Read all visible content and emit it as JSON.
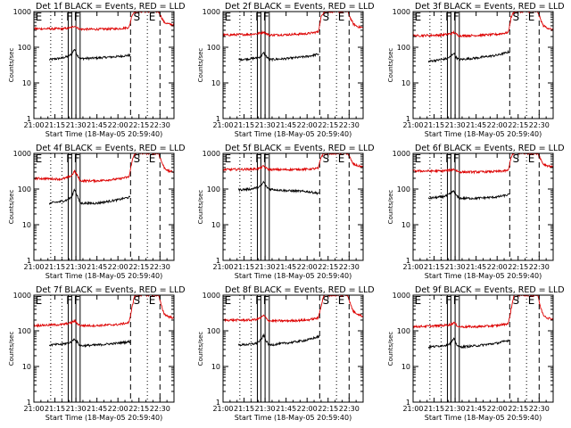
{
  "figure": {
    "background": "#ffffff",
    "axis_color": "#000000",
    "series_colors": {
      "events": "#000000",
      "lld": "#dd0000"
    }
  },
  "shared": {
    "xlabel": "Start Time (18-May-05 20:59:40)",
    "ylabel": "Counts/sec",
    "xticks": [
      "21:00",
      "21:15",
      "21:30",
      "21:45",
      "22:00",
      "22:15",
      "22:30"
    ],
    "xtick_minutes": [
      0,
      15,
      30,
      45,
      60,
      75,
      90
    ],
    "yticks": [
      "1",
      "10",
      "100",
      "1000"
    ],
    "ytick_values": [
      1,
      10,
      100,
      1000
    ],
    "xlim_minutes": [
      0,
      100
    ],
    "ylim": [
      1,
      1000
    ],
    "yscale": "log",
    "vlines": [
      {
        "t": 12,
        "style": "dotted"
      },
      {
        "t": 20,
        "style": "dotted"
      },
      {
        "t": 24.5,
        "style": "solid"
      },
      {
        "t": 27,
        "style": "solid"
      },
      {
        "t": 30,
        "style": "solid"
      },
      {
        "t": 33,
        "style": "solid"
      },
      {
        "t": 69,
        "style": "dashed"
      },
      {
        "t": 81,
        "style": "dotted"
      },
      {
        "t": 90,
        "style": "dashed"
      }
    ],
    "markers": [
      {
        "t": 1,
        "label": "E"
      },
      {
        "t": 23,
        "label": "F"
      },
      {
        "t": 28.5,
        "label": "F"
      },
      {
        "t": 71,
        "label": "S"
      },
      {
        "t": 82,
        "label": "E"
      }
    ]
  },
  "chart_data": [
    {
      "type": "line",
      "title": "Det 1f BLACK = Events, RED = LLD",
      "xlabel": "Start Time (18-May-05 20:59:40)",
      "ylabel": "Counts/sec",
      "yscale": "log",
      "xlim": [
        "21:00",
        "22:40"
      ],
      "ylim": [
        1,
        1000
      ],
      "series": [
        {
          "name": "Events",
          "color": "#000000",
          "t_start": 11,
          "t_end": 69,
          "x_minutes": [
            11,
            20,
            24,
            27,
            29,
            31,
            33,
            45,
            60,
            69
          ],
          "values": [
            45,
            50,
            55,
            65,
            90,
            60,
            48,
            50,
            55,
            60
          ]
        },
        {
          "name": "LLD",
          "color": "#dd0000",
          "t_start": 0,
          "t_end": 100,
          "x_minutes": [
            0,
            20,
            24,
            27,
            29,
            31,
            33,
            45,
            60,
            68,
            70,
            72,
            76,
            81,
            89,
            91,
            93,
            96,
            100
          ],
          "values": [
            330,
            330,
            340,
            360,
            400,
            350,
            320,
            320,
            330,
            360,
            800,
            1000,
            1000,
            1000,
            1000,
            700,
            500,
            450,
            420
          ]
        }
      ]
    },
    {
      "type": "line",
      "title": "Det 2f BLACK = Events, RED = LLD",
      "xlabel": "Start Time (18-May-05 20:59:40)",
      "ylabel": "Counts/sec",
      "yscale": "log",
      "xlim": [
        "21:00",
        "22:40"
      ],
      "ylim": [
        1,
        1000
      ],
      "series": [
        {
          "name": "Events",
          "color": "#000000",
          "t_start": 11,
          "t_end": 69,
          "x_minutes": [
            11,
            20,
            24,
            27,
            29,
            31,
            33,
            45,
            60,
            69
          ],
          "values": [
            45,
            48,
            50,
            55,
            70,
            55,
            45,
            48,
            55,
            65
          ]
        },
        {
          "name": "LLD",
          "color": "#dd0000",
          "t_start": 0,
          "t_end": 100,
          "x_minutes": [
            0,
            20,
            24,
            27,
            29,
            31,
            33,
            45,
            60,
            68,
            70,
            72,
            76,
            81,
            89,
            91,
            93,
            96,
            100
          ],
          "values": [
            220,
            230,
            240,
            250,
            270,
            240,
            220,
            225,
            240,
            270,
            700,
            1000,
            1000,
            1000,
            1000,
            650,
            450,
            380,
            350
          ]
        }
      ]
    },
    {
      "type": "line",
      "title": "Det 3f BLACK = Events, RED = LLD",
      "xlabel": "Start Time (18-May-05 20:59:40)",
      "ylabel": "Counts/sec",
      "yscale": "log",
      "xlim": [
        "21:00",
        "22:40"
      ],
      "ylim": [
        1,
        1000
      ],
      "series": [
        {
          "name": "Events",
          "color": "#000000",
          "t_start": 11,
          "t_end": 69,
          "x_minutes": [
            11,
            20,
            24,
            27,
            29,
            31,
            33,
            45,
            60,
            69
          ],
          "values": [
            40,
            45,
            48,
            55,
            70,
            50,
            45,
            50,
            60,
            75
          ]
        },
        {
          "name": "LLD",
          "color": "#dd0000",
          "t_start": 0,
          "t_end": 100,
          "x_minutes": [
            0,
            20,
            24,
            27,
            29,
            31,
            33,
            45,
            60,
            68,
            70,
            72,
            76,
            81,
            89,
            91,
            93,
            96,
            100
          ],
          "values": [
            210,
            220,
            230,
            240,
            260,
            230,
            210,
            215,
            230,
            260,
            700,
            1000,
            1000,
            1000,
            1000,
            600,
            400,
            350,
            300
          ]
        }
      ]
    },
    {
      "type": "line",
      "title": "Det 4f BLACK = Events, RED = LLD",
      "xlabel": "Start Time (18-May-05 20:59:40)",
      "ylabel": "Counts/sec",
      "yscale": "log",
      "xlim": [
        "21:00",
        "22:40"
      ],
      "ylim": [
        1,
        1000
      ],
      "series": [
        {
          "name": "Events",
          "color": "#000000",
          "t_start": 11,
          "t_end": 69,
          "x_minutes": [
            11,
            20,
            24,
            27,
            29,
            31,
            33,
            45,
            60,
            69
          ],
          "values": [
            40,
            45,
            50,
            60,
            100,
            65,
            40,
            40,
            50,
            60
          ]
        },
        {
          "name": "LLD",
          "color": "#dd0000",
          "t_start": 0,
          "t_end": 100,
          "x_minutes": [
            0,
            20,
            24,
            27,
            29,
            31,
            33,
            45,
            60,
            68,
            70,
            72,
            76,
            81,
            89,
            91,
            93,
            96,
            100
          ],
          "values": [
            200,
            190,
            210,
            240,
            320,
            240,
            170,
            170,
            190,
            220,
            600,
            1000,
            1000,
            1000,
            1000,
            600,
            400,
            320,
            300
          ]
        }
      ]
    },
    {
      "type": "line",
      "title": "Det 5f BLACK = Events, RED = LLD",
      "xlabel": "Start Time (18-May-05 20:59:40)",
      "ylabel": "Counts/sec",
      "yscale": "log",
      "xlim": [
        "21:00",
        "22:40"
      ],
      "ylim": [
        1,
        1000
      ],
      "series": [
        {
          "name": "Events",
          "color": "#000000",
          "t_start": 11,
          "t_end": 69,
          "x_minutes": [
            11,
            20,
            24,
            27,
            29,
            31,
            33,
            45,
            60,
            69
          ],
          "values": [
            95,
            100,
            110,
            120,
            160,
            115,
            100,
            90,
            85,
            75
          ]
        },
        {
          "name": "LLD",
          "color": "#dd0000",
          "t_start": 0,
          "t_end": 100,
          "x_minutes": [
            0,
            20,
            24,
            27,
            29,
            31,
            33,
            45,
            60,
            68,
            70,
            72,
            76,
            81,
            89,
            91,
            93,
            96,
            100
          ],
          "values": [
            350,
            360,
            370,
            390,
            440,
            380,
            350,
            350,
            360,
            380,
            800,
            1000,
            1000,
            1000,
            1000,
            700,
            500,
            450,
            420
          ]
        }
      ]
    },
    {
      "type": "line",
      "title": "Det 6f BLACK = Events, RED = LLD",
      "xlabel": "Start Time (18-May-05 20:59:40)",
      "ylabel": "Counts/sec",
      "yscale": "log",
      "xlim": [
        "21:00",
        "22:40"
      ],
      "ylim": [
        1,
        1000
      ],
      "series": [
        {
          "name": "Events",
          "color": "#000000",
          "t_start": 11,
          "t_end": 69,
          "x_minutes": [
            11,
            20,
            24,
            27,
            29,
            31,
            33,
            45,
            60,
            69
          ],
          "values": [
            55,
            60,
            65,
            75,
            90,
            65,
            55,
            55,
            60,
            70
          ]
        },
        {
          "name": "LLD",
          "color": "#dd0000",
          "t_start": 0,
          "t_end": 100,
          "x_minutes": [
            0,
            20,
            24,
            27,
            29,
            31,
            33,
            45,
            60,
            68,
            70,
            72,
            76,
            81,
            89,
            91,
            93,
            96,
            100
          ],
          "values": [
            320,
            320,
            330,
            340,
            360,
            330,
            300,
            300,
            310,
            330,
            800,
            1000,
            1000,
            1000,
            1000,
            700,
            500,
            450,
            420
          ]
        }
      ]
    },
    {
      "type": "line",
      "title": "Det 7f BLACK = Events, RED = LLD",
      "xlabel": "Start Time (18-May-05 20:59:40)",
      "ylabel": "Counts/sec",
      "yscale": "log",
      "xlim": [
        "21:00",
        "22:40"
      ],
      "ylim": [
        1,
        1000
      ],
      "series": [
        {
          "name": "Events",
          "color": "#000000",
          "t_start": 11,
          "t_end": 69,
          "x_minutes": [
            11,
            20,
            24,
            27,
            29,
            31,
            33,
            45,
            60,
            69
          ],
          "values": [
            40,
            42,
            45,
            50,
            60,
            48,
            38,
            40,
            45,
            50
          ]
        },
        {
          "name": "LLD",
          "color": "#dd0000",
          "t_start": 0,
          "t_end": 100,
          "x_minutes": [
            0,
            20,
            24,
            27,
            29,
            31,
            33,
            45,
            60,
            68,
            70,
            72,
            76,
            81,
            89,
            91,
            93,
            96,
            100
          ],
          "values": [
            140,
            150,
            160,
            170,
            190,
            160,
            140,
            140,
            150,
            170,
            450,
            1000,
            1000,
            1000,
            1000,
            500,
            300,
            250,
            230
          ]
        }
      ]
    },
    {
      "type": "line",
      "title": "Det 8f BLACK = Events, RED = LLD",
      "xlabel": "Start Time (18-May-05 20:59:40)",
      "ylabel": "Counts/sec",
      "yscale": "log",
      "xlim": [
        "21:00",
        "22:40"
      ],
      "ylim": [
        1,
        1000
      ],
      "series": [
        {
          "name": "Events",
          "color": "#000000",
          "t_start": 11,
          "t_end": 69,
          "x_minutes": [
            11,
            20,
            24,
            27,
            29,
            31,
            33,
            45,
            60,
            69
          ],
          "values": [
            40,
            42,
            45,
            55,
            75,
            50,
            40,
            45,
            55,
            70
          ]
        },
        {
          "name": "LLD",
          "color": "#dd0000",
          "t_start": 0,
          "t_end": 100,
          "x_minutes": [
            0,
            20,
            24,
            27,
            29,
            31,
            33,
            45,
            60,
            68,
            70,
            72,
            76,
            81,
            89,
            91,
            93,
            96,
            100
          ],
          "values": [
            200,
            200,
            210,
            230,
            270,
            220,
            190,
            190,
            200,
            230,
            500,
            1000,
            1000,
            1000,
            1000,
            550,
            350,
            300,
            250
          ]
        }
      ]
    },
    {
      "type": "line",
      "title": "Det 9f BLACK = Events, RED = LLD",
      "xlabel": "Start Time (18-May-05 20:59:40)",
      "ylabel": "Counts/sec",
      "yscale": "log",
      "xlim": [
        "21:00",
        "22:40"
      ],
      "ylim": [
        1,
        1000
      ],
      "series": [
        {
          "name": "Events",
          "color": "#000000",
          "t_start": 11,
          "t_end": 69,
          "x_minutes": [
            11,
            20,
            24,
            27,
            29,
            31,
            33,
            45,
            60,
            69
          ],
          "values": [
            35,
            38,
            40,
            45,
            60,
            42,
            35,
            38,
            45,
            55
          ]
        },
        {
          "name": "LLD",
          "color": "#dd0000",
          "t_start": 0,
          "t_end": 100,
          "x_minutes": [
            0,
            20,
            24,
            27,
            29,
            31,
            33,
            45,
            60,
            68,
            70,
            72,
            76,
            81,
            89,
            91,
            93,
            96,
            100
          ],
          "values": [
            130,
            140,
            145,
            150,
            170,
            145,
            130,
            130,
            140,
            160,
            400,
            1000,
            1000,
            1000,
            1000,
            450,
            280,
            230,
            210
          ]
        }
      ]
    }
  ]
}
